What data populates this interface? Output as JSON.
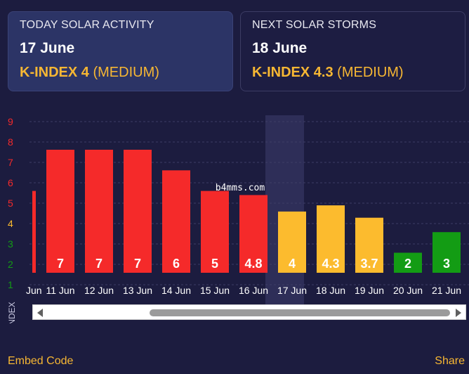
{
  "today": {
    "heading": "TODAY SOLAR ACTIVITY",
    "date": "17 June",
    "k_label": "K-INDEX 4",
    "level": "(MEDIUM)"
  },
  "next": {
    "heading": "NEXT SOLAR STORMS",
    "date": "18 June",
    "k_label": "K-INDEX 4.3",
    "level": "(MEDIUM)"
  },
  "watermark": "b4mms.com",
  "colors": {
    "high": "#f52a2a",
    "medium": "#fcbb2e",
    "low": "#139c14",
    "accent": "#f7b733",
    "background": "#1c1c3f"
  },
  "chart_data": {
    "type": "bar",
    "title": "",
    "xlabel": "",
    "ylabel": "K-INDEX",
    "ylim": [
      1,
      9
    ],
    "grid": true,
    "highlighted_category": "17 Jun",
    "y_ticks": [
      {
        "label": "9",
        "color": "#f52a2a"
      },
      {
        "label": "8",
        "color": "#f52a2a"
      },
      {
        "label": "7",
        "color": "#f52a2a"
      },
      {
        "label": "6",
        "color": "#f52a2a"
      },
      {
        "label": "5",
        "color": "#f52a2a"
      },
      {
        "label": "4",
        "color": "#fcbb2e"
      },
      {
        "label": "3",
        "color": "#139c14"
      },
      {
        "label": "2",
        "color": "#139c14"
      },
      {
        "label": "1",
        "color": "#139c14"
      }
    ],
    "partial_category": "Jun",
    "partial_value": 5,
    "categories": [
      "11 Jun",
      "12 Jun",
      "13 Jun",
      "14 Jun",
      "15 Jun",
      "16 Jun",
      "17 Jun",
      "18 Jun",
      "19 Jun",
      "20 Jun",
      "21 Jun"
    ],
    "values": [
      7,
      7,
      7,
      6,
      5,
      4.8,
      4,
      4.3,
      3.7,
      2,
      3
    ],
    "bar_labels": [
      "7",
      "7",
      "7",
      "6",
      "5",
      "4.8",
      "4",
      "4.3",
      "3.7",
      "2",
      "3"
    ],
    "bar_colors": [
      "#f52a2a",
      "#f52a2a",
      "#f52a2a",
      "#f52a2a",
      "#f52a2a",
      "#f52a2a",
      "#fcbb2e",
      "#fcbb2e",
      "#fcbb2e",
      "#139c14",
      "#139c14"
    ]
  },
  "footer": {
    "embed_label": "Embed Code",
    "share_label": "Share"
  }
}
